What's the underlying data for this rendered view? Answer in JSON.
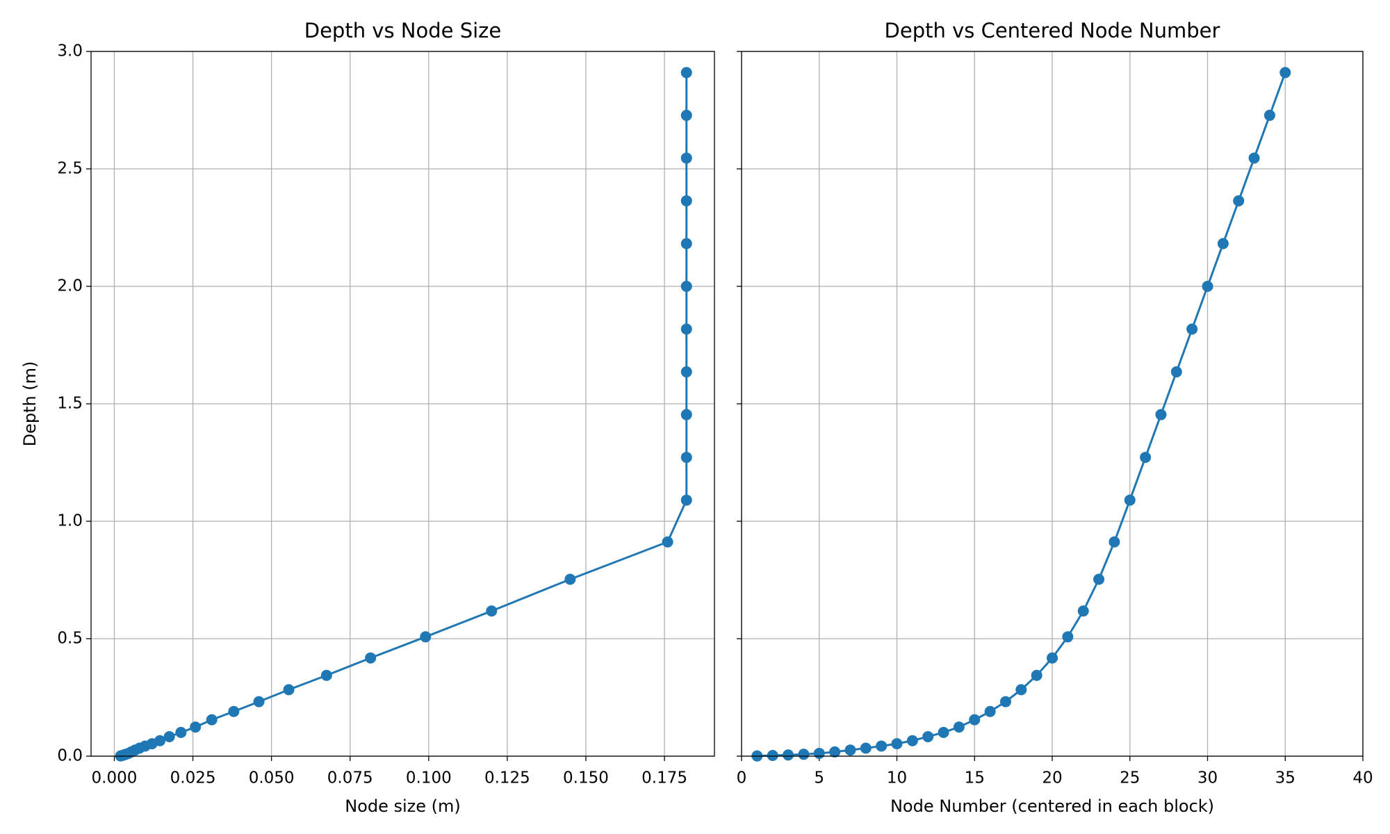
{
  "chart_data": [
    {
      "type": "line",
      "title": "Depth vs Node Size",
      "xlabel": "Node size (m)",
      "ylabel": "Depth (m)",
      "color": "#1f77b4",
      "grid": true,
      "x": [
        0.002,
        0.0025,
        0.003,
        0.0037,
        0.0045,
        0.0054,
        0.0066,
        0.008,
        0.0098,
        0.012,
        0.0145,
        0.0175,
        0.0212,
        0.0258,
        0.031,
        0.038,
        0.046,
        0.0555,
        0.0675,
        0.0815,
        0.099,
        0.12,
        0.145,
        0.176,
        0.182,
        0.182,
        0.182,
        0.182,
        0.182,
        0.182,
        0.182,
        0.182,
        0.182,
        0.182,
        0.182
      ],
      "values": [
        0.001,
        0.003,
        0.005,
        0.008,
        0.012,
        0.018,
        0.026,
        0.034,
        0.043,
        0.053,
        0.066,
        0.083,
        0.101,
        0.124,
        0.155,
        0.19,
        0.232,
        0.283,
        0.344,
        0.418,
        0.508,
        0.618,
        0.753,
        0.912,
        1.09,
        1.272,
        1.454,
        1.636,
        1.818,
        2.0,
        2.182,
        2.364,
        2.546,
        2.728,
        2.91
      ],
      "xlim": [
        -0.0074,
        0.1909
      ],
      "xticks": [
        {
          "value": 0,
          "label": "0.000"
        },
        {
          "value": 0.025,
          "label": "0.025"
        },
        {
          "value": 0.05,
          "label": "0.050"
        },
        {
          "value": 0.075,
          "label": "0.075"
        },
        {
          "value": 0.1,
          "label": "0.100"
        },
        {
          "value": 0.125,
          "label": "0.125"
        },
        {
          "value": 0.15,
          "label": "0.150"
        },
        {
          "value": 0.175,
          "label": "0.175"
        }
      ],
      "ylim": [
        0,
        3
      ],
      "yticks": [
        {
          "value": 0,
          "label": "0.0"
        },
        {
          "value": 0.5,
          "label": "0.5"
        },
        {
          "value": 1,
          "label": "1.0"
        },
        {
          "value": 1.5,
          "label": "1.5"
        },
        {
          "value": 2,
          "label": "2.0"
        },
        {
          "value": 2.5,
          "label": "2.5"
        },
        {
          "value": 3,
          "label": "3.0"
        }
      ]
    },
    {
      "type": "line",
      "title": "Depth vs Centered Node Number",
      "xlabel": "Node Number (centered in each block)",
      "color": "#1f77b4",
      "grid": true,
      "sharey": true,
      "x": [
        1,
        2,
        3,
        4,
        5,
        6,
        7,
        8,
        9,
        10,
        11,
        12,
        13,
        14,
        15,
        16,
        17,
        18,
        19,
        20,
        21,
        22,
        23,
        24,
        25,
        26,
        27,
        28,
        29,
        30,
        31,
        32,
        33,
        34,
        35
      ],
      "values": [
        0.001,
        0.003,
        0.005,
        0.008,
        0.012,
        0.018,
        0.026,
        0.034,
        0.043,
        0.053,
        0.066,
        0.083,
        0.101,
        0.124,
        0.155,
        0.19,
        0.232,
        0.283,
        0.344,
        0.418,
        0.508,
        0.618,
        0.753,
        0.912,
        1.09,
        1.272,
        1.454,
        1.636,
        1.818,
        2.0,
        2.182,
        2.364,
        2.546,
        2.728,
        2.91
      ],
      "xlim": [
        0,
        40
      ],
      "xticks": [
        0,
        5,
        10,
        15,
        20,
        25,
        30,
        35,
        40
      ],
      "ylim": [
        0,
        3
      ],
      "yticks": [
        0,
        0.5,
        1,
        1.5,
        2,
        2.5,
        3
      ]
    }
  ]
}
